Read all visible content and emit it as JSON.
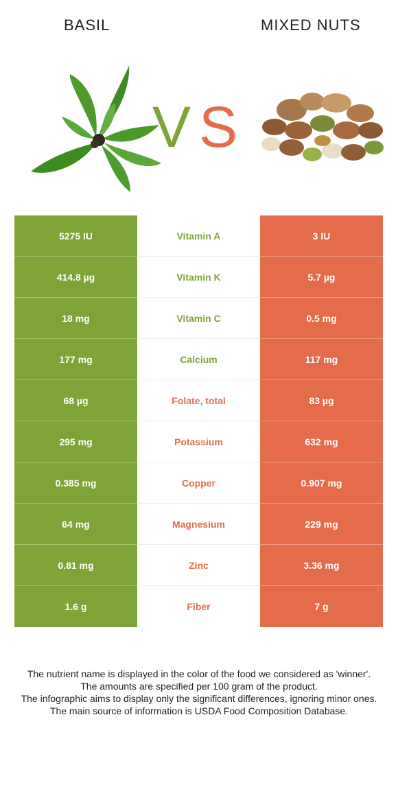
{
  "header": {
    "left_food": "BASIL",
    "right_food": "MIXED NUTS",
    "vs_v": "V",
    "vs_s": "S"
  },
  "colors": {
    "winner_left": "#7ea336",
    "winner_right": "#e56c4a"
  },
  "rows": [
    {
      "nutrient": "Vitamin A",
      "left": "5275 IU",
      "right": "3 IU",
      "winner": "left"
    },
    {
      "nutrient": "Vitamin K",
      "left": "414.8 µg",
      "right": "5.7 µg",
      "winner": "left"
    },
    {
      "nutrient": "Vitamin C",
      "left": "18 mg",
      "right": "0.5 mg",
      "winner": "left"
    },
    {
      "nutrient": "Calcium",
      "left": "177 mg",
      "right": "117 mg",
      "winner": "left"
    },
    {
      "nutrient": "Folate, total",
      "left": "68 µg",
      "right": "83 µg",
      "winner": "right"
    },
    {
      "nutrient": "Potassium",
      "left": "295 mg",
      "right": "632 mg",
      "winner": "right"
    },
    {
      "nutrient": "Copper",
      "left": "0.385 mg",
      "right": "0.907 mg",
      "winner": "right"
    },
    {
      "nutrient": "Magnesium",
      "left": "64 mg",
      "right": "229 mg",
      "winner": "right"
    },
    {
      "nutrient": "Zinc",
      "left": "0.81 mg",
      "right": "3.36 mg",
      "winner": "right"
    },
    {
      "nutrient": "Fiber",
      "left": "1.6 g",
      "right": "7 g",
      "winner": "right"
    }
  ],
  "footnote": [
    "The nutrient name is displayed in the color of the food we considered as 'winner'.",
    "The amounts are specified per 100 gram of the product.",
    "The infographic aims to display only the significant differences, ignoring minor ones.",
    "The main source of information is USDA Food Composition Database."
  ]
}
